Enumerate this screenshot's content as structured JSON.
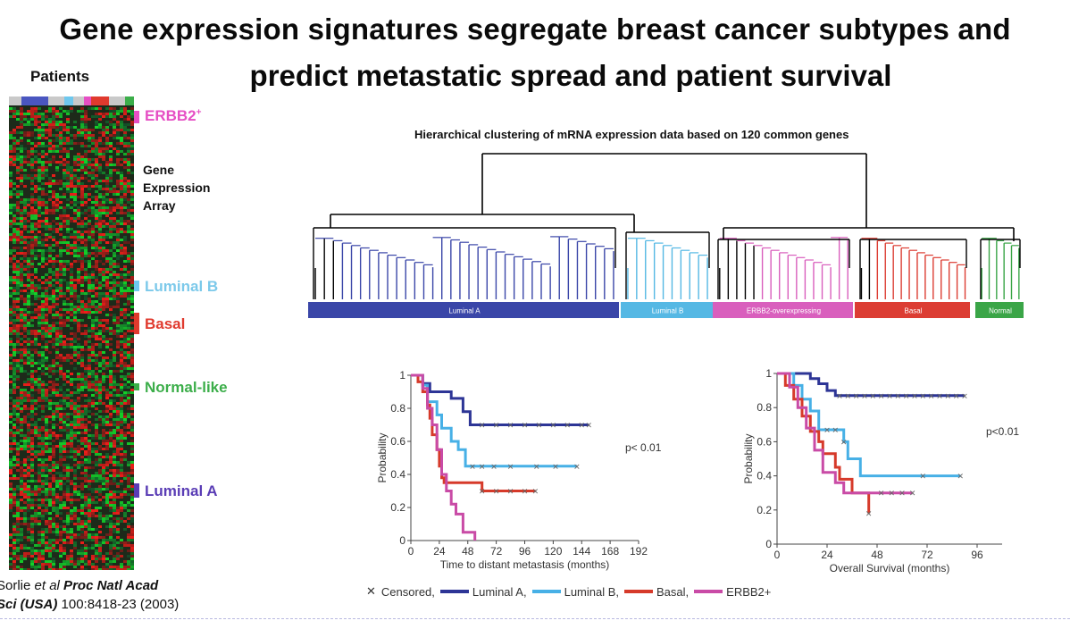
{
  "title_line1": "Gene expression signatures segregate breast cancer subtypes and",
  "title_line2": "predict metastatic spread and patient survival",
  "heatmap": {
    "patients_label": "Patients",
    "gene_label_lines": [
      "Gene",
      "Expression",
      "Array"
    ],
    "subtypes": [
      {
        "key": "erbb2",
        "label_main": "ERBB2",
        "label_sup": "+",
        "color": "#e64fc4"
      },
      {
        "key": "lumb",
        "label_main": "Luminal B",
        "label_sup": "",
        "color": "#6ec8ee"
      },
      {
        "key": "basal",
        "label_main": "Basal",
        "label_sup": "",
        "color": "#e03a2e"
      },
      {
        "key": "normal",
        "label_main": "Normal-like",
        "label_sup": "",
        "color": "#3cae4a"
      },
      {
        "key": "luma",
        "label_main": "Luminal A",
        "label_sup": "",
        "color": "#5a3db5"
      }
    ]
  },
  "citation": {
    "line1_a": "Sorlie ",
    "line1_b": "et al",
    "line1_c": " Proc Natl Acad",
    "line2_a": "Sci (USA)",
    "line2_b": " 100:8418-23 (2003)"
  },
  "dendrogram": {
    "title": "Hierarchical clustering of mRNA expression data based on 120 common genes",
    "groups": [
      {
        "label": "Luminal A",
        "color": "#3a46a8"
      },
      {
        "label": "Luminal B",
        "color": "#55b8e4"
      },
      {
        "label": "ERBB2-overexpressing",
        "color": "#d95fbd"
      },
      {
        "label": "Basal",
        "color": "#dc3d33"
      },
      {
        "label": "Normal",
        "color": "#3aa547"
      }
    ]
  },
  "chart_data": [
    {
      "type": "line",
      "title": "",
      "xlabel": "Time to distant metastasis (months)",
      "ylabel": "Probability",
      "xlim": [
        0,
        192
      ],
      "ylim": [
        0,
        1
      ],
      "xticks": [
        "0",
        "24",
        "48",
        "72",
        "96",
        "120",
        "144",
        "168",
        "192"
      ],
      "yticks": [
        "0",
        "0.2",
        "0.4",
        "0.6",
        "0.8",
        "1"
      ],
      "annotation": "p< 0.01",
      "series": [
        {
          "name": "Luminal A",
          "color": "#2d3596",
          "points": [
            [
              0,
              1
            ],
            [
              10,
              1
            ],
            [
              10,
              0.95
            ],
            [
              16,
              0.95
            ],
            [
              16,
              0.9
            ],
            [
              34,
              0.9
            ],
            [
              34,
              0.86
            ],
            [
              44,
              0.86
            ],
            [
              44,
              0.78
            ],
            [
              50,
              0.78
            ],
            [
              50,
              0.7
            ],
            [
              150,
              0.7
            ]
          ],
          "censored": [
            60,
            72,
            84,
            96,
            108,
            120,
            132,
            144,
            150
          ]
        },
        {
          "name": "Luminal B",
          "color": "#47b0e6",
          "points": [
            [
              0,
              1
            ],
            [
              10,
              1
            ],
            [
              10,
              0.94
            ],
            [
              14,
              0.94
            ],
            [
              14,
              0.84
            ],
            [
              22,
              0.84
            ],
            [
              22,
              0.76
            ],
            [
              26,
              0.76
            ],
            [
              26,
              0.68
            ],
            [
              34,
              0.68
            ],
            [
              34,
              0.6
            ],
            [
              40,
              0.6
            ],
            [
              40,
              0.55
            ],
            [
              46,
              0.55
            ],
            [
              46,
              0.45
            ],
            [
              140,
              0.45
            ]
          ],
          "censored": [
            52,
            60,
            70,
            84,
            106,
            122,
            140
          ]
        },
        {
          "name": "Basal",
          "color": "#d63a2a",
          "points": [
            [
              0,
              1
            ],
            [
              6,
              1
            ],
            [
              6,
              0.96
            ],
            [
              10,
              0.96
            ],
            [
              10,
              0.9
            ],
            [
              14,
              0.9
            ],
            [
              14,
              0.82
            ],
            [
              16,
              0.82
            ],
            [
              16,
              0.74
            ],
            [
              18,
              0.74
            ],
            [
              18,
              0.64
            ],
            [
              22,
              0.64
            ],
            [
              22,
              0.55
            ],
            [
              24,
              0.55
            ],
            [
              24,
              0.45
            ],
            [
              26,
              0.45
            ],
            [
              26,
              0.38
            ],
            [
              28,
              0.38
            ],
            [
              28,
              0.35
            ],
            [
              60,
              0.35
            ],
            [
              60,
              0.3
            ],
            [
              105,
              0.3
            ]
          ],
          "censored": [
            60,
            72,
            84,
            96,
            105
          ]
        },
        {
          "name": "ERBB2+",
          "color": "#c94ba6",
          "points": [
            [
              0,
              1
            ],
            [
              10,
              1
            ],
            [
              10,
              0.92
            ],
            [
              14,
              0.92
            ],
            [
              14,
              0.8
            ],
            [
              18,
              0.8
            ],
            [
              18,
              0.7
            ],
            [
              22,
              0.7
            ],
            [
              22,
              0.55
            ],
            [
              26,
              0.55
            ],
            [
              26,
              0.4
            ],
            [
              30,
              0.4
            ],
            [
              30,
              0.3
            ],
            [
              34,
              0.3
            ],
            [
              34,
              0.22
            ],
            [
              38,
              0.22
            ],
            [
              38,
              0.16
            ],
            [
              44,
              0.16
            ],
            [
              44,
              0.05
            ],
            [
              54,
              0.05
            ],
            [
              54,
              0
            ]
          ],
          "censored": []
        }
      ]
    },
    {
      "type": "line",
      "title": "",
      "xlabel": "Overall Survival (months)",
      "ylabel": "Probability",
      "xlim": [
        0,
        108
      ],
      "ylim": [
        0,
        1
      ],
      "xticks": [
        "0",
        "24",
        "48",
        "72",
        "96"
      ],
      "yticks": [
        "0",
        "0.2",
        "0.4",
        "0.6",
        "0.8",
        "1"
      ],
      "annotation": "p<0.01",
      "series": [
        {
          "name": "Luminal A",
          "color": "#2d3596",
          "points": [
            [
              0,
              1
            ],
            [
              16,
              1
            ],
            [
              16,
              0.97
            ],
            [
              20,
              0.97
            ],
            [
              20,
              0.94
            ],
            [
              24,
              0.94
            ],
            [
              24,
              0.9
            ],
            [
              28,
              0.9
            ],
            [
              28,
              0.87
            ],
            [
              90,
              0.87
            ]
          ],
          "censored": [
            30,
            34,
            38,
            42,
            46,
            50,
            54,
            58,
            62,
            66,
            70,
            74,
            78,
            82,
            86,
            90
          ]
        },
        {
          "name": "Luminal B",
          "color": "#47b0e6",
          "points": [
            [
              0,
              1
            ],
            [
              8,
              1
            ],
            [
              8,
              0.93
            ],
            [
              12,
              0.93
            ],
            [
              12,
              0.85
            ],
            [
              16,
              0.85
            ],
            [
              16,
              0.78
            ],
            [
              20,
              0.78
            ],
            [
              20,
              0.67
            ],
            [
              32,
              0.67
            ],
            [
              32,
              0.6
            ],
            [
              34,
              0.6
            ],
            [
              34,
              0.5
            ],
            [
              40,
              0.5
            ],
            [
              40,
              0.4
            ],
            [
              88,
              0.4
            ]
          ],
          "censored": [
            24,
            28,
            32,
            70,
            88
          ]
        },
        {
          "name": "Basal",
          "color": "#d63a2a",
          "points": [
            [
              0,
              1
            ],
            [
              4,
              1
            ],
            [
              4,
              0.93
            ],
            [
              8,
              0.93
            ],
            [
              8,
              0.85
            ],
            [
              12,
              0.85
            ],
            [
              12,
              0.75
            ],
            [
              16,
              0.75
            ],
            [
              16,
              0.66
            ],
            [
              20,
              0.66
            ],
            [
              20,
              0.6
            ],
            [
              22,
              0.6
            ],
            [
              22,
              0.53
            ],
            [
              28,
              0.53
            ],
            [
              28,
              0.45
            ],
            [
              30,
              0.45
            ],
            [
              30,
              0.38
            ],
            [
              36,
              0.38
            ],
            [
              36,
              0.3
            ],
            [
              44,
              0.3
            ],
            [
              44,
              0.18
            ]
          ],
          "censored": [
            44
          ]
        },
        {
          "name": "ERBB2+",
          "color": "#c94ba6",
          "points": [
            [
              0,
              1
            ],
            [
              6,
              1
            ],
            [
              6,
              0.92
            ],
            [
              10,
              0.92
            ],
            [
              10,
              0.8
            ],
            [
              14,
              0.8
            ],
            [
              14,
              0.68
            ],
            [
              18,
              0.68
            ],
            [
              18,
              0.55
            ],
            [
              22,
              0.55
            ],
            [
              22,
              0.42
            ],
            [
              28,
              0.42
            ],
            [
              28,
              0.36
            ],
            [
              32,
              0.36
            ],
            [
              32,
              0.3
            ],
            [
              65,
              0.3
            ]
          ],
          "censored": [
            50,
            55,
            60,
            65
          ]
        }
      ]
    }
  ],
  "legend": {
    "censored_label": "Censored,",
    "items": [
      {
        "label": "Luminal A,",
        "color": "#2d3596"
      },
      {
        "label": "Luminal B,",
        "color": "#47b0e6"
      },
      {
        "label": "Basal,",
        "color": "#d63a2a"
      },
      {
        "label": "ERBB2+",
        "color": "#c94ba6"
      }
    ]
  }
}
